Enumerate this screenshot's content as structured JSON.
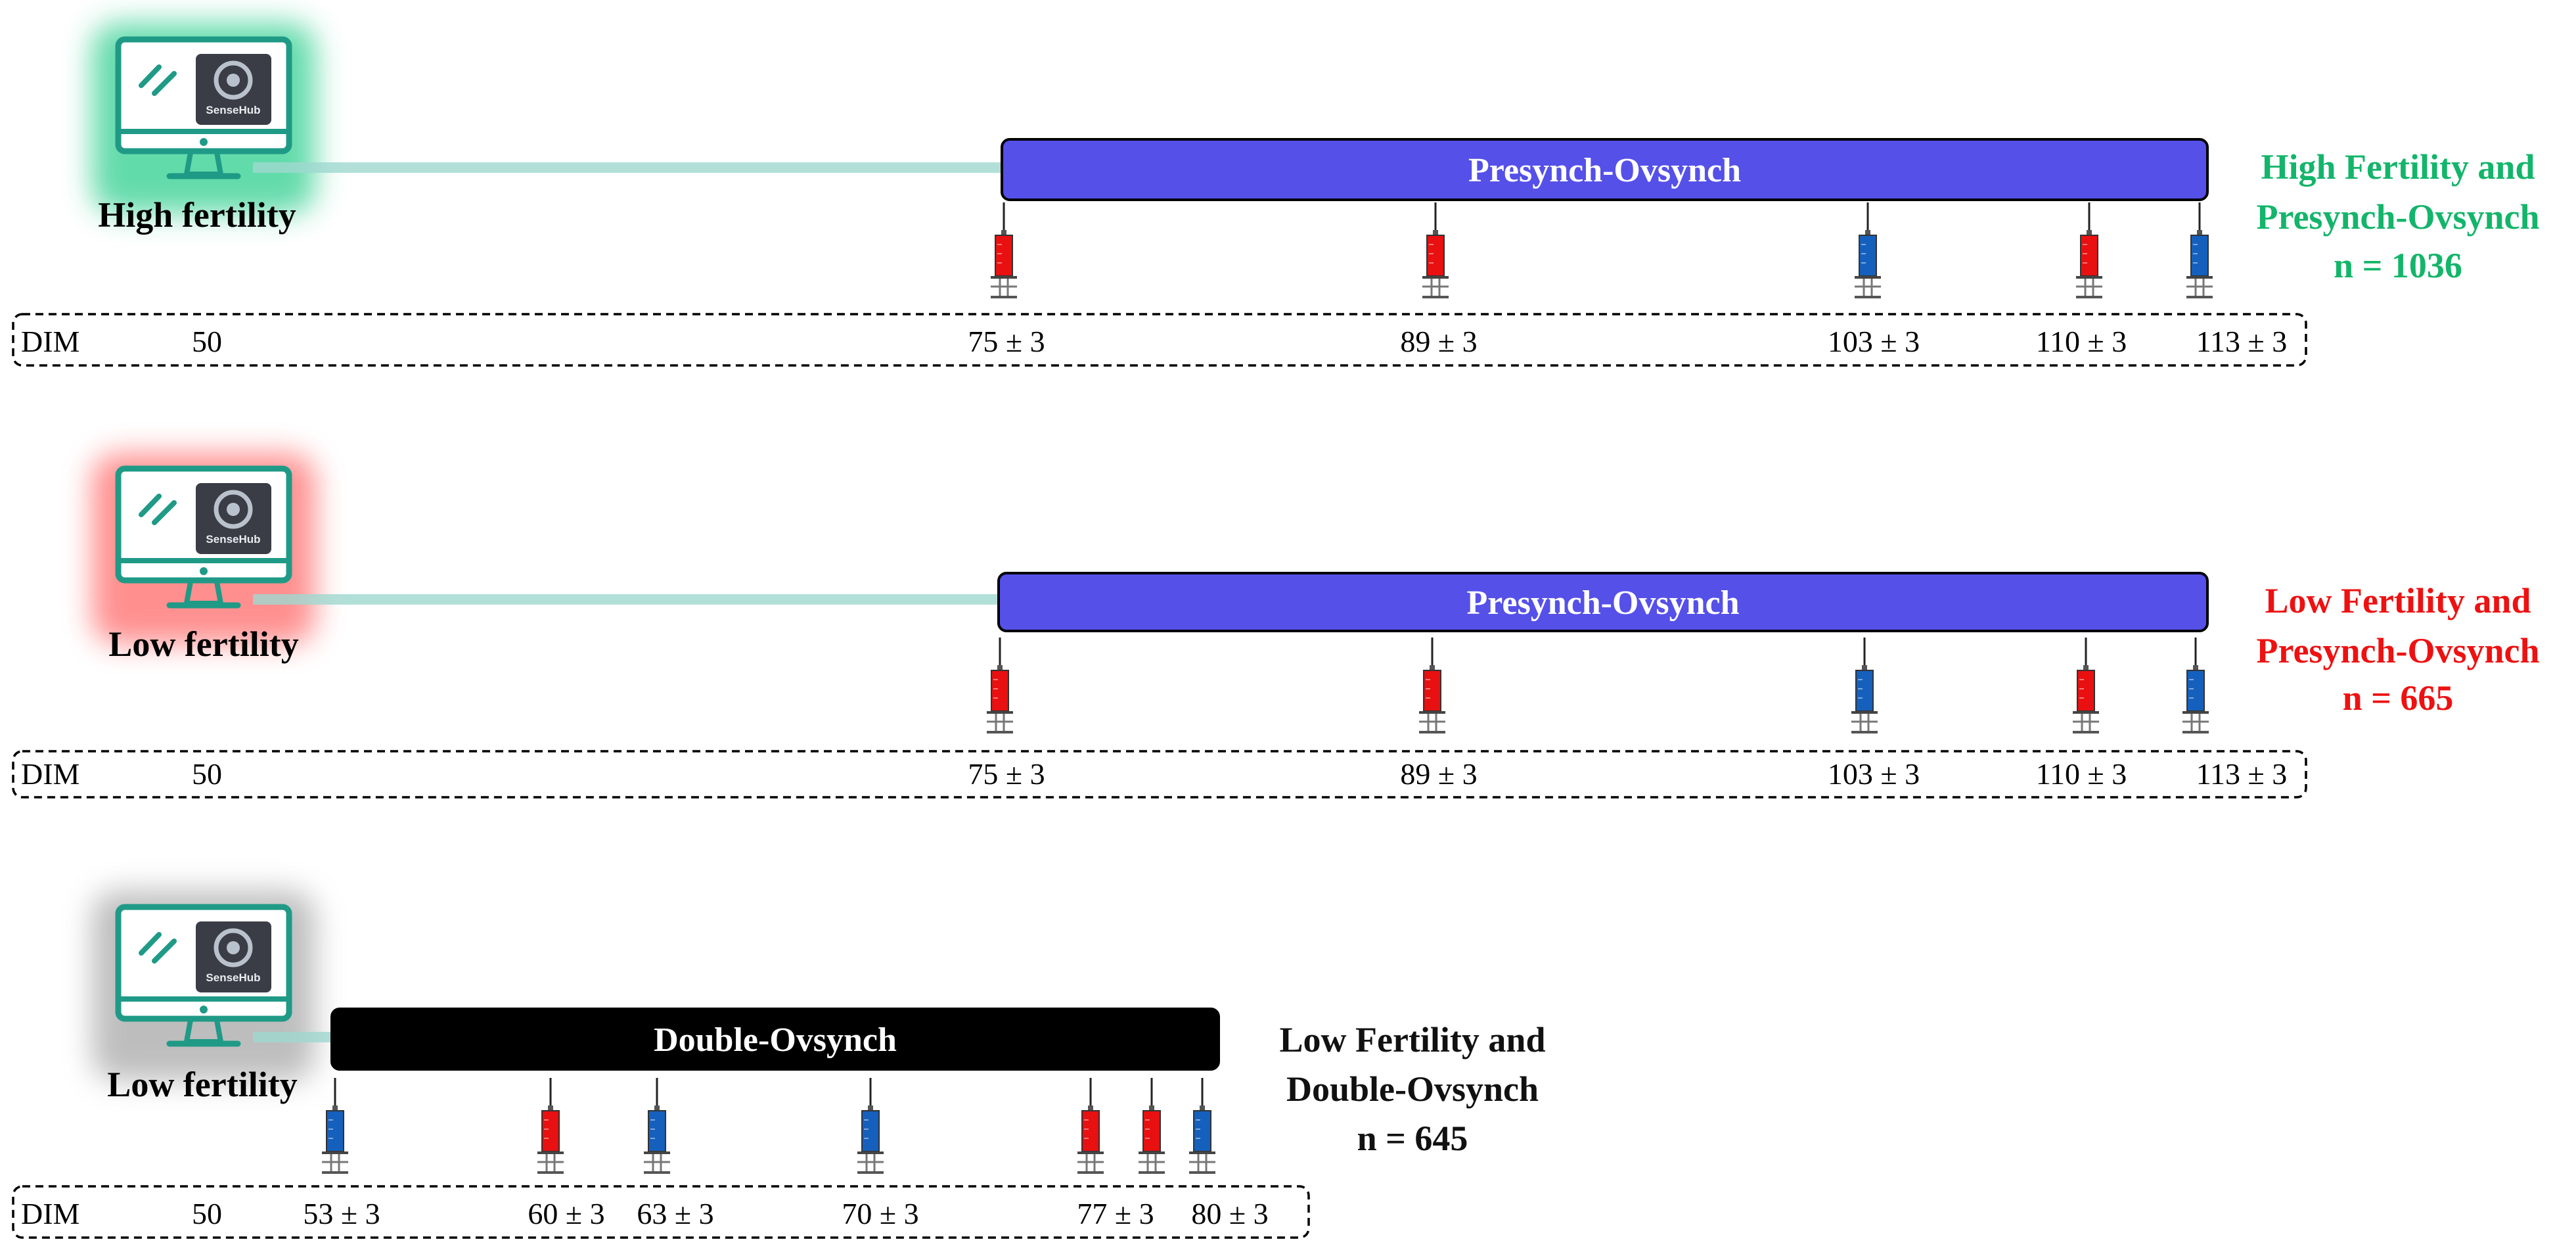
{
  "sections": [
    {
      "id": "high-presynch",
      "group_label": "High fertility",
      "glow_color": "#2ecf8e",
      "protocol": {
        "label": "Presynch-Ovsynch",
        "fill": "#5550e8",
        "text_color": "#ffffff"
      },
      "injections": [
        {
          "dim": "75 ± 3",
          "color": "#e81010"
        },
        {
          "dim": "89 ± 3",
          "color": "#e81010"
        },
        {
          "dim": "103 ± 3",
          "color": "#1560bd"
        },
        {
          "dim": "110 ± 3",
          "color": "#e81010"
        },
        {
          "dim": "113 ± 3",
          "color": "#1560bd"
        }
      ],
      "timeline": {
        "label": "DIM",
        "start": "50"
      },
      "result": {
        "line1": "High Fertility and",
        "line2": "Presynch-Ovsynch",
        "line3": "n = 1036",
        "color": "#13b56a"
      }
    },
    {
      "id": "low-presynch",
      "group_label": "Low fertility",
      "glow_color": "#ff6b6b",
      "protocol": {
        "label": "Presynch-Ovsynch",
        "fill": "#5550e8",
        "text_color": "#ffffff"
      },
      "injections": [
        {
          "dim": "75 ± 3",
          "color": "#e81010"
        },
        {
          "dim": "89 ± 3",
          "color": "#e81010"
        },
        {
          "dim": "103 ± 3",
          "color": "#1560bd"
        },
        {
          "dim": "110 ± 3",
          "color": "#e81010"
        },
        {
          "dim": "113 ± 3",
          "color": "#1560bd"
        }
      ],
      "timeline": {
        "label": "DIM",
        "start": "50"
      },
      "result": {
        "line1": "Low Fertility and",
        "line2": "Presynch-Ovsynch",
        "line3": "n = 665",
        "color": "#ee1111"
      }
    },
    {
      "id": "low-double",
      "group_label": "Low fertility",
      "glow_color": "#a8a8a8",
      "protocol": {
        "label": "Double-Ovsynch",
        "fill": "#000000",
        "text_color": "#ffffff"
      },
      "injections": [
        {
          "dim": "53 ± 3",
          "color": "#1560bd"
        },
        {
          "dim": "60 ± 3",
          "color": "#e81010"
        },
        {
          "dim": "63 ± 3",
          "color": "#1560bd"
        },
        {
          "dim": "70 ± 3",
          "color": "#1560bd"
        },
        {
          "dim": "77 ± 3",
          "color": "#e81010"
        },
        {
          "dim": "",
          "color": "#e81010"
        },
        {
          "dim": "80 ± 3",
          "color": "#1560bd"
        }
      ],
      "timeline": {
        "label": "DIM",
        "start": "50"
      },
      "result": {
        "line1": "Low Fertility and",
        "line2": "Double-Ovsynch",
        "line3": "n = 645",
        "color": "#111111"
      }
    }
  ],
  "monitor": {
    "screen_logo": "SenseHub",
    "frame_color": "#1f9a86"
  }
}
